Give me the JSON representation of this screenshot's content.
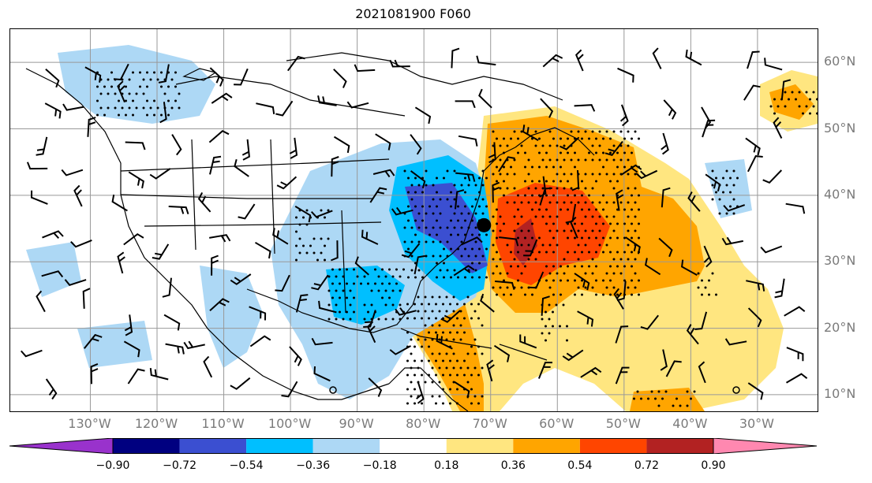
{
  "title": "2021081900 F060",
  "lat_labels": [
    "60°N",
    "50°N",
    "40°N",
    "30°N",
    "20°N",
    "10°N"
  ],
  "lon_labels": [
    "130°W",
    "120°W",
    "110°W",
    "100°W",
    "90°W",
    "80°W",
    "70°W",
    "60°W",
    "50°W",
    "40°W",
    "30°W"
  ],
  "colorbar": {
    "tick_labels": [
      "−0.90",
      "−0.72",
      "−0.54",
      "−0.36",
      "−0.18",
      "0.18",
      "0.36",
      "0.54",
      "0.72",
      "0.90"
    ],
    "colors": [
      "#9932cc",
      "#000080",
      "#3b4fd1",
      "#00bfff",
      "#add8f5",
      "#ffffff",
      "#ffe680",
      "#ffa500",
      "#ff4500",
      "#b22222",
      "#ff88b0"
    ]
  },
  "map": {
    "lon_range": [
      -142,
      -21
    ],
    "lat_range": [
      7.5,
      65
    ],
    "marker": {
      "lon": -71,
      "lat": 35.5
    }
  }
}
